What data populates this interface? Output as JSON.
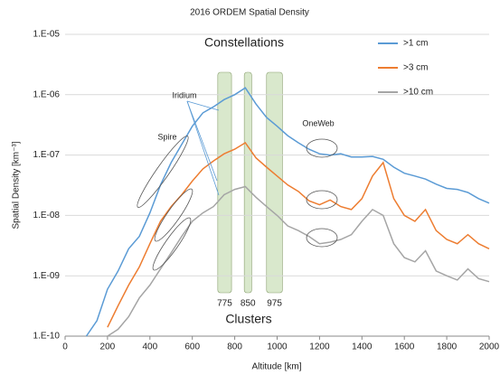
{
  "chart_data": {
    "type": "line",
    "title": "2016 ORDEM Spatial Density",
    "x_label": "Altitude [km]",
    "y_label": "Spatial Density [km⁻³]",
    "log_y": true,
    "grid": true,
    "legend": "upper right",
    "xlim": [
      0,
      2000
    ],
    "ylim": [
      1e-10,
      1e-05
    ],
    "xticks": [
      0,
      200,
      400,
      600,
      800,
      1000,
      1200,
      1400,
      1600,
      1800,
      2000
    ],
    "yticks": [
      {
        "value": 1e-10,
        "label": "1.E-10"
      },
      {
        "value": 1e-09,
        "label": "1.E-09"
      },
      {
        "value": 1e-08,
        "label": "1.E-08"
      },
      {
        "value": 1e-07,
        "label": "1.E-07"
      },
      {
        "value": 1e-06,
        "label": "1.E-06"
      },
      {
        "value": 1e-05,
        "label": "1.E-05"
      }
    ],
    "x": [
      100,
      150,
      200,
      250,
      300,
      350,
      400,
      450,
      500,
      550,
      600,
      650,
      700,
      750,
      800,
      850,
      900,
      950,
      1000,
      1050,
      1100,
      1150,
      1200,
      1250,
      1300,
      1350,
      1400,
      1450,
      1500,
      1550,
      1600,
      1650,
      1700,
      1750,
      1800,
      1850,
      1900,
      1950,
      2000
    ],
    "series": [
      {
        "name": ">1 cm",
        "color": "#5b9bd5",
        "values": [
          1e-10,
          1.8e-10,
          6e-10,
          1.2e-09,
          2.8e-09,
          4.5e-09,
          1.1e-08,
          3.2e-08,
          7.5e-08,
          1.5e-07,
          3e-07,
          5e-07,
          6.3e-07,
          8.3e-07,
          1e-06,
          1.3e-06,
          7e-07,
          4.2e-07,
          3e-07,
          2.1e-07,
          1.6e-07,
          1.25e-07,
          1.05e-07,
          1e-07,
          1.05e-07,
          9.3e-08,
          9.3e-08,
          9.5e-08,
          8.5e-08,
          6.3e-08,
          5e-08,
          4.5e-08,
          4e-08,
          3.3e-08,
          2.8e-08,
          2.7e-08,
          2.4e-08,
          1.9e-08,
          1.6e-08
        ]
      },
      {
        "name": ">3 cm",
        "color": "#ed7d31",
        "values": [
          null,
          null,
          1.4e-10,
          3.2e-10,
          7e-10,
          1.4e-09,
          3.4e-09,
          8e-09,
          1.4e-08,
          2.2e-08,
          3.7e-08,
          5.9e-08,
          8e-08,
          1.05e-07,
          1.25e-07,
          1.6e-07,
          9e-08,
          6.3e-08,
          4.5e-08,
          3.2e-08,
          2.5e-08,
          1.75e-08,
          1.5e-08,
          1.8e-08,
          1.4e-08,
          1.25e-08,
          1.9e-08,
          4.5e-08,
          7.5e-08,
          1.9e-08,
          1e-08,
          8e-09,
          1.25e-08,
          5.6e-09,
          4e-09,
          3.4e-09,
          4.8e-09,
          3.4e-09,
          2.8e-09
        ]
      },
      {
        "name": ">10 cm",
        "color": "#a5a5a5",
        "values": [
          null,
          null,
          1e-10,
          1.3e-10,
          2.1e-10,
          4.3e-10,
          7e-10,
          1.3e-09,
          2.4e-09,
          4.5e-09,
          8e-09,
          1.1e-08,
          1.4e-08,
          2.2e-08,
          2.7e-08,
          3e-08,
          2e-08,
          1.4e-08,
          1e-08,
          6.7e-09,
          5.6e-09,
          4.5e-09,
          3.4e-09,
          3.6e-09,
          4e-09,
          4.8e-09,
          8e-09,
          1.25e-08,
          1e-08,
          3.4e-09,
          2e-09,
          1.7e-09,
          2.6e-09,
          1.2e-09,
          1e-09,
          8.5e-10,
          1.3e-09,
          9e-10,
          8e-10
        ]
      }
    ],
    "bands": [
      {
        "label": "775",
        "from": 720,
        "to": 785
      },
      {
        "label": "850",
        "from": 845,
        "to": 880
      },
      {
        "label": "975",
        "from": 950,
        "to": 1025
      }
    ],
    "band_color": "#d9e8cc",
    "annotations": {
      "constellations": "Constellations",
      "clusters": "Clusters",
      "iridium": "Iridium",
      "spire": "Spire",
      "oneweb": "OneWeb"
    }
  }
}
